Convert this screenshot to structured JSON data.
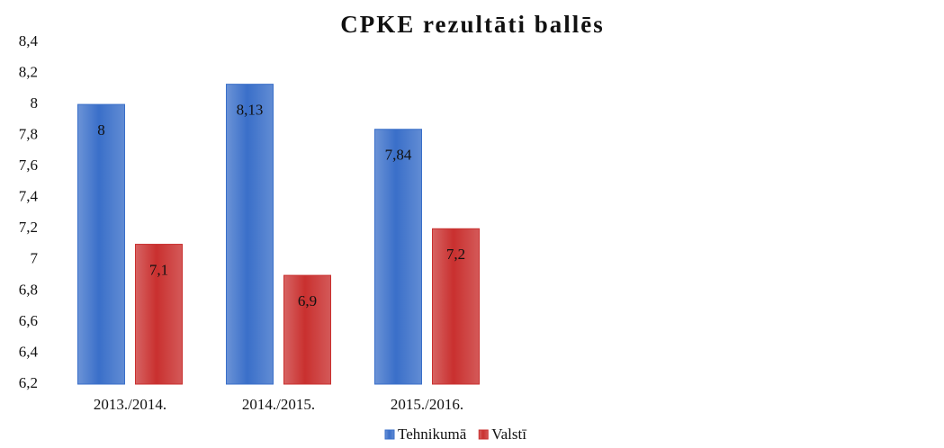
{
  "chart_data": {
    "type": "bar",
    "title": "CPKE rezultāti ballēs",
    "categories": [
      "2013./2014.",
      "2014./2015.",
      "2015./2016."
    ],
    "series": [
      {
        "name": "Tehnikumā",
        "color": "#3a6fc9",
        "values": [
          8,
          8.13,
          7.84
        ],
        "value_labels": [
          "8",
          "8,13",
          "7,84"
        ]
      },
      {
        "name": "Valstī",
        "color": "#c9302f",
        "values": [
          7.1,
          6.9,
          7.2
        ],
        "value_labels": [
          "7,1",
          "6,9",
          "7,2"
        ]
      }
    ],
    "ylim": [
      6.2,
      8.4
    ],
    "yticks": [
      {
        "value": 6.2,
        "label": "6,2"
      },
      {
        "value": 6.4,
        "label": "6,4"
      },
      {
        "value": 6.6,
        "label": "6,6"
      },
      {
        "value": 6.8,
        "label": "6,8"
      },
      7,
      {
        "value": 7.2,
        "label": "7,2"
      },
      {
        "value": 7.4,
        "label": "7,4"
      },
      {
        "value": 7.6,
        "label": "7,6"
      },
      {
        "value": 7.8,
        "label": "7,8"
      },
      8,
      {
        "value": 8.2,
        "label": "8,2"
      },
      {
        "value": 8.4,
        "label": "8,4"
      }
    ],
    "legend": "bottom"
  }
}
